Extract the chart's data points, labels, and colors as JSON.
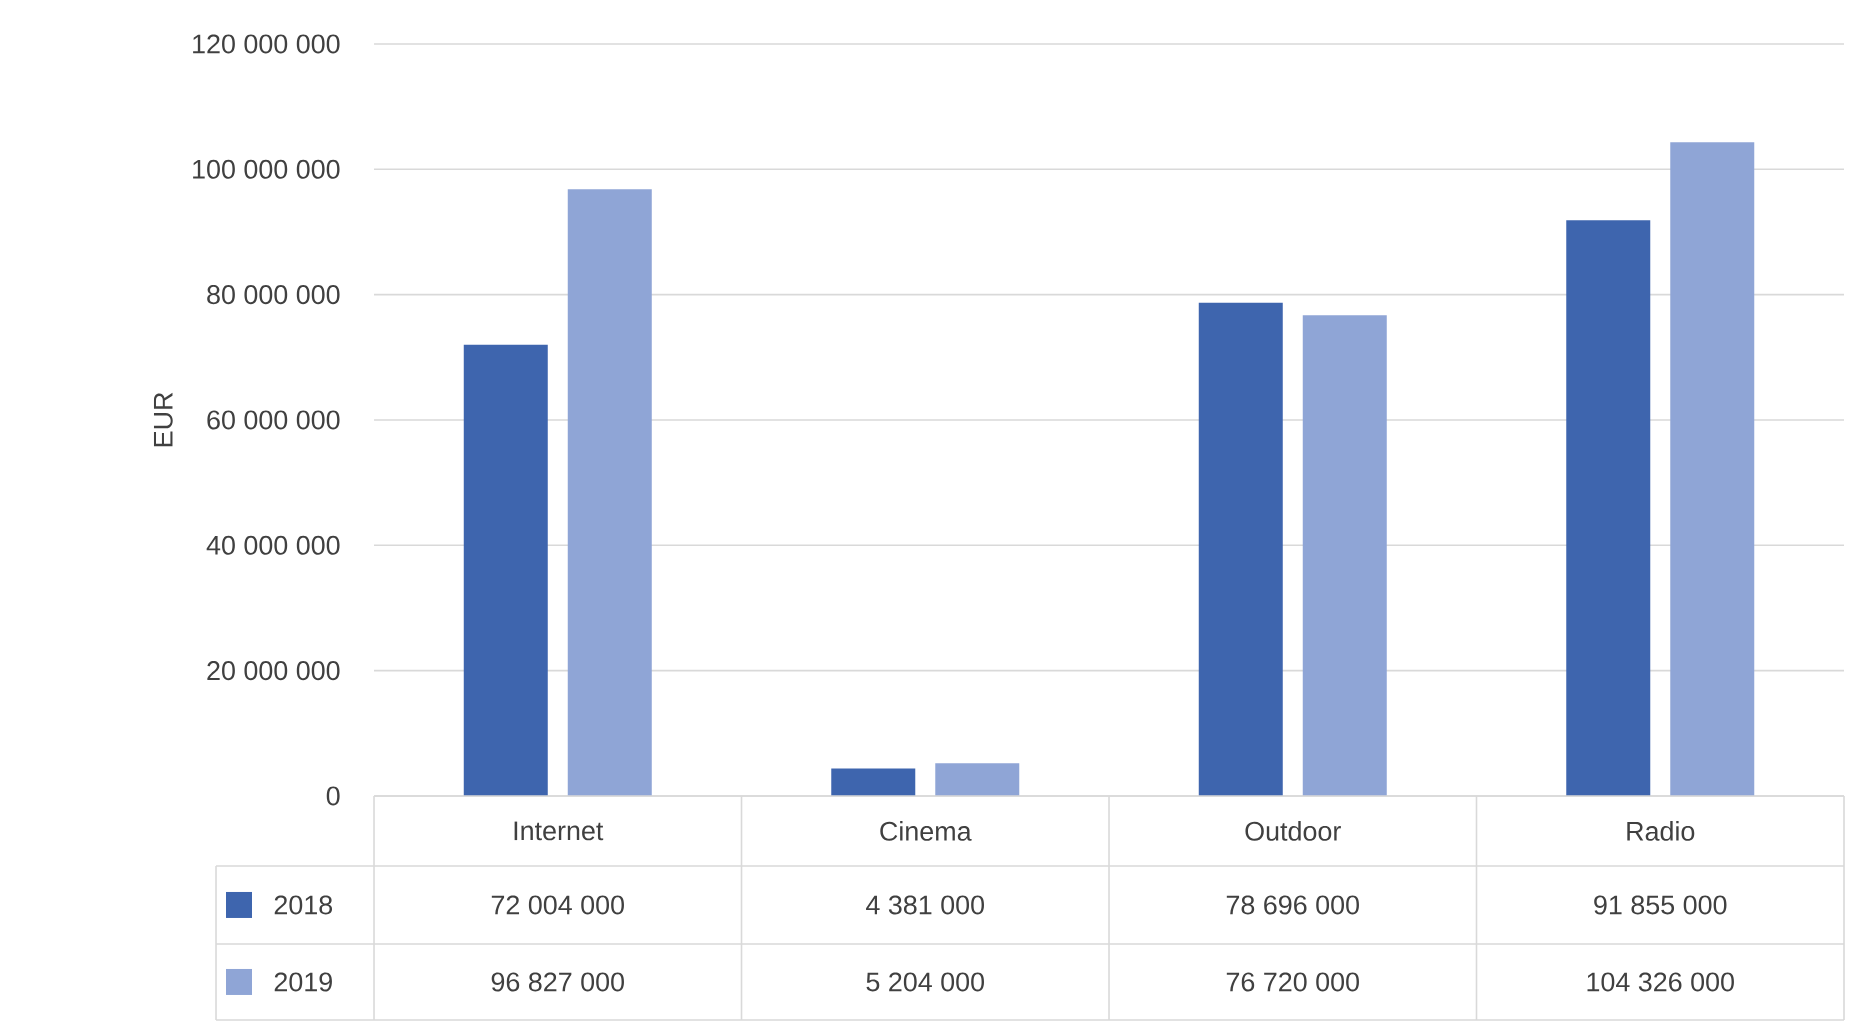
{
  "chart_data": {
    "type": "bar",
    "ylabel": "EUR",
    "categories": [
      "Internet",
      "Cinema",
      "Outdoor",
      "Radio"
    ],
    "series": [
      {
        "name": "2018",
        "color": "#3e65ae",
        "values": [
          72004000,
          4381000,
          78696000,
          91855000
        ],
        "value_labels": [
          "72 004 000",
          "4 381 000",
          "78 696 000",
          "91 855 000"
        ]
      },
      {
        "name": "2019",
        "color": "#8fa5d6",
        "values": [
          96827000,
          5204000,
          76720000,
          104326000
        ],
        "value_labels": [
          "96 827 000",
          "5 204 000",
          "76 720 000",
          "104 326 000"
        ]
      }
    ],
    "ylim": [
      0,
      120000000
    ],
    "yticks": [
      0,
      {
        "value": 20000000,
        "label": "20 000 000"
      },
      {
        "value": 40000000,
        "label": "40 000 000"
      },
      {
        "value": 60000000,
        "label": "60 000 000"
      },
      {
        "value": 80000000,
        "label": "80 000 000"
      },
      {
        "value": 100000000,
        "label": "100 000 000"
      },
      {
        "value": 120000000,
        "label": "120 000 000"
      }
    ],
    "grid": "y",
    "legend": "bottom"
  }
}
